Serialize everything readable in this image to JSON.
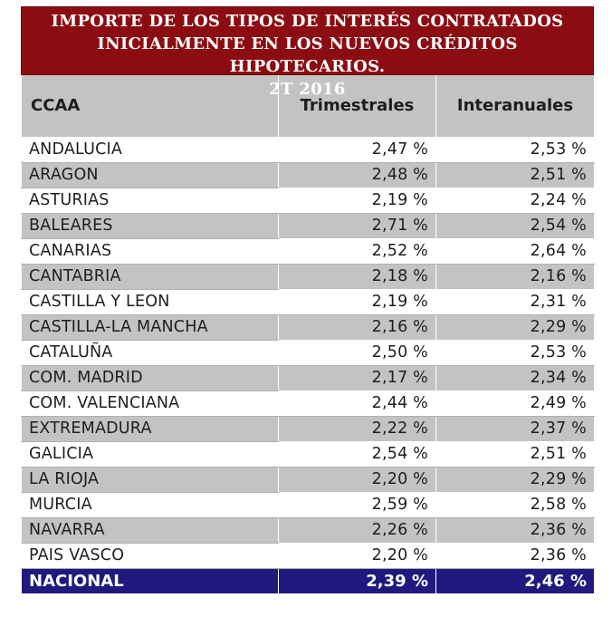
{
  "title": {
    "line1": "IMPORTE DE LOS TIPOS DE INTERÉS CONTRATADOS",
    "line2": "INICIALMENTE EN LOS NUEVOS CRÉDITOS HIPOTECARIOS.",
    "line3": "2T 2016"
  },
  "columns": [
    "CCAA",
    "Trimestrales",
    "Interanuales"
  ],
  "rows": [
    {
      "ccaa": "ANDALUCIA",
      "trimestrales": "2,47 %",
      "interanuales": "2,53 %"
    },
    {
      "ccaa": "ARAGON",
      "trimestrales": "2,48 %",
      "interanuales": "2,51 %"
    },
    {
      "ccaa": "ASTURIAS",
      "trimestrales": "2,19 %",
      "interanuales": "2,24 %"
    },
    {
      "ccaa": "BALEARES",
      "trimestrales": "2,71 %",
      "interanuales": "2,54 %"
    },
    {
      "ccaa": "CANARIAS",
      "trimestrales": "2,52 %",
      "interanuales": "2,64 %"
    },
    {
      "ccaa": "CANTABRIA",
      "trimestrales": "2,18 %",
      "interanuales": "2,16 %"
    },
    {
      "ccaa": "CASTILLA Y LEON",
      "trimestrales": "2,19 %",
      "interanuales": "2,31 %"
    },
    {
      "ccaa": "CASTILLA-LA MANCHA",
      "trimestrales": "2,16 %",
      "interanuales": "2,29 %"
    },
    {
      "ccaa": "CATALUÑA",
      "trimestrales": "2,50 %",
      "interanuales": "2,53 %"
    },
    {
      "ccaa": "COM. MADRID",
      "trimestrales": "2,17 %",
      "interanuales": "2,34 %"
    },
    {
      "ccaa": "COM. VALENCIANA",
      "trimestrales": "2,44 %",
      "interanuales": "2,49 %"
    },
    {
      "ccaa": "EXTREMADURA",
      "trimestrales": "2,22 %",
      "interanuales": "2,37 %"
    },
    {
      "ccaa": "GALICIA",
      "trimestrales": "2,54 %",
      "interanuales": "2,51 %"
    },
    {
      "ccaa": "LA RIOJA",
      "trimestrales": "2,20 %",
      "interanuales": "2,29 %"
    },
    {
      "ccaa": "MURCIA",
      "trimestrales": "2,59 %",
      "interanuales": "2,58 %"
    },
    {
      "ccaa": "NAVARRA",
      "trimestrales": "2,26 %",
      "interanuales": "2,36 %"
    },
    {
      "ccaa": "PAIS VASCO",
      "trimestrales": "2,20 %",
      "interanuales": "2,36 %"
    }
  ],
  "total": {
    "ccaa": "NACIONAL",
    "trimestrales": "2,39 %",
    "interanuales": "2,46 %"
  },
  "colors": {
    "title_bg": "#8b0d12",
    "header_bg": "#c3c3c3",
    "stripe_bg": "#c3c3c3",
    "total_bg": "#1f1a7d"
  }
}
